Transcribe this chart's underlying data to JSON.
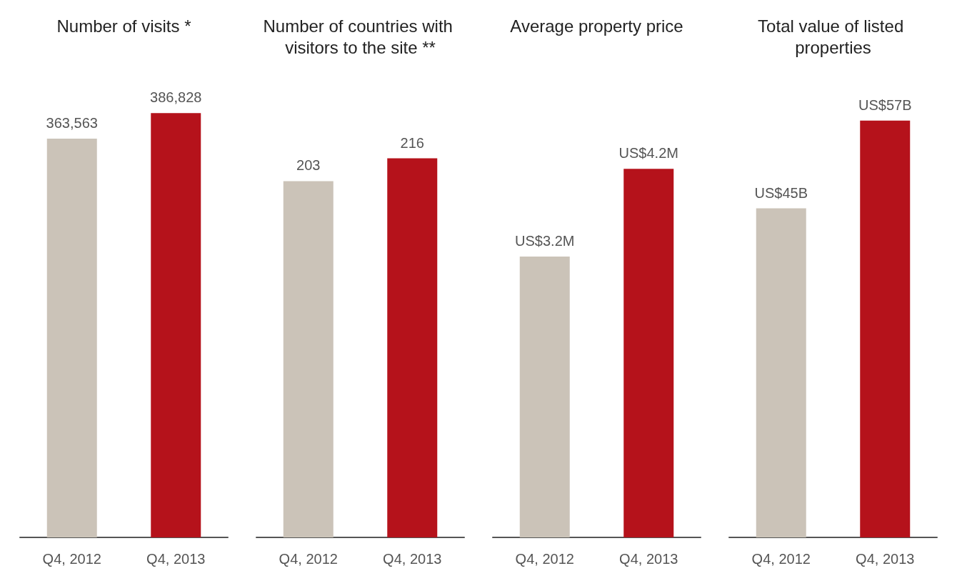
{
  "chart_data": [
    {
      "type": "bar",
      "title": "Number of visits *",
      "categories": [
        "Q4, 2012",
        "Q4, 2013"
      ],
      "values": [
        363563,
        386828
      ],
      "colors": [
        "#cbc3b8",
        "#b5121b"
      ],
      "value_labels": [
        "363,563",
        "386,828"
      ],
      "tick_labels": "x"
    },
    {
      "type": "bar",
      "title": "Number of countries with visitors to the site **",
      "categories": [
        "Q4, 2012",
        "Q4, 2013"
      ],
      "values": [
        203,
        216
      ],
      "colors": [
        "#cbc3b8",
        "#b5121b"
      ],
      "data_labels": true,
      "tick_labels": "x"
    },
    {
      "type": "bar",
      "title": "Average property price",
      "categories": [
        "Q4, 2012",
        "Q4, 2013"
      ],
      "values": [
        3200000,
        4200000
      ],
      "colors": [
        "#cbc3b8",
        "#b5121b"
      ],
      "value_labels": [
        "US$3.2M",
        "US$4.2M"
      ],
      "tick_labels": "x"
    },
    {
      "type": "bar",
      "title": "Total value of listed properties",
      "categories": [
        "Q4, 2012",
        "Q4, 2013"
      ],
      "values": [
        45000000000,
        57000000000
      ],
      "colors": [
        "#cbc3b8",
        "#b5121b"
      ],
      "value_labels": [
        "US$45B",
        "US$57B"
      ],
      "tick_labels": "x"
    }
  ]
}
